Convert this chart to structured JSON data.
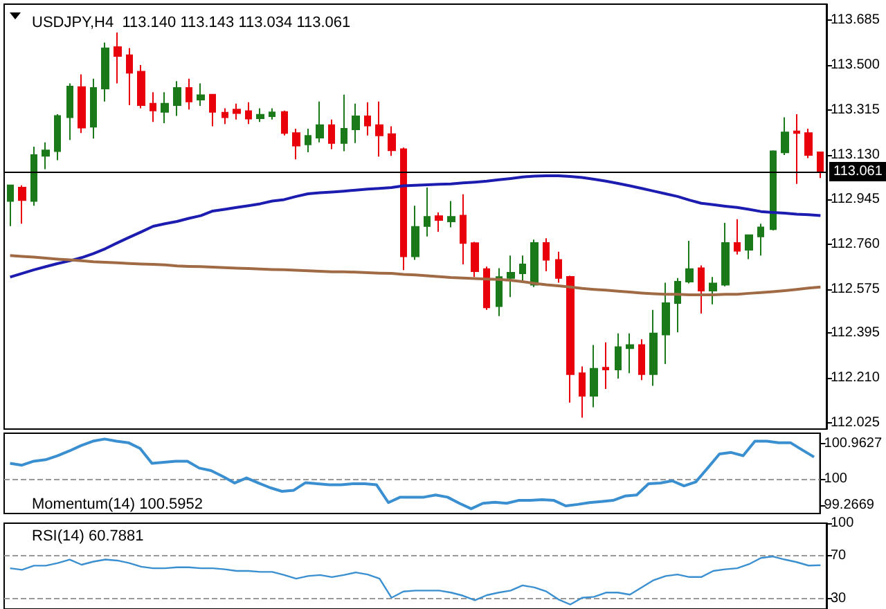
{
  "chart_data": [
    {
      "type": "candlestick",
      "title": "USDJPY,H4  113.140 113.143 113.034 113.061",
      "marker": "none",
      "categories": [
        null,
        null,
        null,
        null,
        null,
        null,
        null,
        null,
        null,
        null,
        null,
        null,
        null,
        null,
        null,
        null,
        null,
        null,
        null,
        null,
        null,
        null,
        null,
        null,
        null,
        null,
        null,
        null,
        null,
        null,
        null,
        null,
        null,
        null,
        null,
        null,
        null,
        null,
        null,
        null,
        null,
        null,
        null,
        null,
        null,
        null,
        null,
        null,
        null,
        null,
        null,
        null,
        null,
        null,
        null,
        null,
        null,
        null,
        null,
        null,
        null,
        null,
        null,
        null,
        null,
        null,
        null,
        null,
        null
      ],
      "ohlc": [
        [
          112.939,
          113.004,
          112.836,
          113.004
        ],
        [
          112.995,
          113.004,
          112.846,
          112.943
        ],
        [
          112.939,
          113.163,
          112.92,
          113.129
        ],
        [
          113.125,
          113.181,
          113.07,
          113.148
        ],
        [
          113.144,
          113.297,
          113.107,
          113.29
        ],
        [
          113.284,
          113.424,
          113.191,
          113.411
        ],
        [
          113.409,
          113.461,
          113.219,
          113.241
        ],
        [
          113.245,
          113.443,
          113.196,
          113.405
        ],
        [
          113.402,
          113.592,
          113.349,
          113.568
        ],
        [
          113.573,
          113.633,
          113.424,
          113.536
        ],
        [
          113.54,
          113.569,
          113.334,
          113.467
        ],
        [
          113.472,
          113.499,
          113.321,
          113.334
        ],
        [
          113.34,
          113.387,
          113.265,
          113.312
        ],
        [
          113.306,
          113.387,
          113.26,
          113.34
        ],
        [
          113.334,
          113.433,
          113.29,
          113.405
        ],
        [
          113.405,
          113.443,
          113.316,
          113.349
        ],
        [
          113.357,
          113.424,
          113.331,
          113.375
        ],
        [
          113.377,
          113.377,
          113.247,
          113.306
        ],
        [
          113.303,
          113.321,
          113.256,
          113.284
        ],
        [
          113.316,
          113.34,
          113.275,
          113.301
        ],
        [
          113.31,
          113.346,
          113.256,
          113.278
        ],
        [
          113.28,
          113.321,
          113.265,
          113.295
        ],
        [
          113.288,
          113.321,
          113.275,
          113.305
        ],
        [
          113.306,
          113.312,
          113.209,
          113.219
        ],
        [
          113.219,
          113.237,
          113.111,
          113.167
        ],
        [
          113.172,
          113.237,
          113.14,
          113.208
        ],
        [
          113.2,
          113.349,
          113.181,
          113.252
        ],
        [
          113.252,
          113.275,
          113.153,
          113.178
        ],
        [
          113.178,
          113.377,
          113.144,
          113.237
        ],
        [
          113.234,
          113.34,
          113.178,
          113.288
        ],
        [
          113.288,
          113.346,
          113.209,
          113.25
        ],
        [
          113.252,
          113.349,
          113.122,
          113.209
        ],
        [
          113.215,
          113.247,
          113.125,
          113.148
        ],
        [
          113.153,
          113.159,
          112.655,
          112.711
        ],
        [
          112.711,
          112.92,
          112.697,
          112.833
        ],
        [
          112.836,
          112.995,
          112.793,
          112.874
        ],
        [
          112.877,
          112.892,
          112.812,
          112.861
        ],
        [
          112.855,
          112.939,
          112.831,
          112.874
        ],
        [
          112.879,
          112.967,
          112.678,
          112.766
        ],
        [
          112.766,
          112.771,
          112.626,
          112.65
        ],
        [
          112.659,
          112.669,
          112.491,
          112.501
        ],
        [
          112.506,
          112.663,
          112.465,
          112.626
        ],
        [
          112.622,
          112.715,
          112.544,
          112.644
        ],
        [
          112.641,
          112.715,
          112.603,
          112.678
        ],
        [
          112.594,
          112.78,
          112.585,
          112.767
        ],
        [
          112.767,
          112.786,
          112.65,
          112.697
        ],
        [
          112.697,
          112.73,
          112.603,
          112.622
        ],
        [
          112.627,
          112.631,
          112.109,
          112.226
        ],
        [
          112.23,
          112.258,
          112.047,
          112.137
        ],
        [
          112.137,
          112.346,
          112.09,
          112.249
        ],
        [
          112.253,
          112.357,
          112.165,
          112.245
        ],
        [
          112.245,
          112.394,
          112.208,
          112.338
        ],
        [
          112.333,
          112.394,
          112.23,
          112.346
        ],
        [
          112.346,
          112.37,
          112.202,
          112.226
        ],
        [
          112.226,
          112.491,
          112.178,
          112.394
        ],
        [
          112.389,
          112.603,
          112.268,
          112.519
        ],
        [
          112.519,
          112.622,
          112.398,
          112.607
        ],
        [
          112.607,
          112.775,
          112.6,
          112.659
        ],
        [
          112.663,
          112.674,
          112.476,
          112.57
        ],
        [
          112.57,
          112.626,
          112.514,
          112.6
        ],
        [
          112.594,
          112.849,
          112.588,
          112.767
        ],
        [
          112.767,
          112.864,
          112.719,
          112.734
        ],
        [
          112.738,
          112.799,
          112.7,
          112.799
        ],
        [
          112.793,
          112.846,
          112.715,
          112.831
        ],
        [
          112.823,
          113.148,
          112.818,
          113.144
        ],
        [
          113.139,
          113.284,
          113.129,
          113.222
        ],
        [
          113.226,
          113.297,
          113.01,
          113.219
        ],
        [
          113.219,
          113.237,
          113.116,
          113.129
        ],
        [
          113.14,
          113.143,
          113.034,
          113.061
        ]
      ],
      "colors": [
        "#1a7a1a",
        "#e8000b",
        "#1a7a1a",
        "#1a7a1a",
        "#1a7a1a",
        "#1a7a1a",
        "#e8000b",
        "#1a7a1a",
        "#1a7a1a",
        "#e8000b",
        "#e8000b",
        "#e8000b",
        "#e8000b",
        "#1a7a1a",
        "#1a7a1a",
        "#e8000b",
        "#1a7a1a",
        "#e8000b",
        "#e8000b",
        "#e8000b",
        "#e8000b",
        "#1a7a1a",
        "#1a7a1a",
        "#e8000b",
        "#e8000b",
        "#1a7a1a",
        "#1a7a1a",
        "#e8000b",
        "#1a7a1a",
        "#1a7a1a",
        "#e8000b",
        "#e8000b",
        "#e8000b",
        "#e8000b",
        "#1a7a1a",
        "#1a7a1a",
        "#e8000b",
        "#1a7a1a",
        "#e8000b",
        "#e8000b",
        "#e8000b",
        "#1a7a1a",
        "#1a7a1a",
        "#1a7a1a",
        "#1a7a1a",
        "#e8000b",
        "#e8000b",
        "#e8000b",
        "#e8000b",
        "#1a7a1a",
        "#e8000b",
        "#1a7a1a",
        "#1a7a1a",
        "#e8000b",
        "#1a7a1a",
        "#1a7a1a",
        "#1a7a1a",
        "#1a7a1a",
        "#e8000b",
        "#1a7a1a",
        "#1a7a1a",
        "#e8000b",
        "#1a7a1a",
        "#1a7a1a",
        "#1a7a1a",
        "#1a7a1a",
        "#e8000b",
        "#e8000b",
        "#e8000b"
      ],
      "series": [
        {
          "type": "line",
          "color": "#1c1cb0",
          "values": [
            112.626,
            112.641,
            112.656,
            112.669,
            112.682,
            112.693,
            112.706,
            112.723,
            112.743,
            112.767,
            112.79,
            112.812,
            112.835,
            112.846,
            112.855,
            112.868,
            112.879,
            112.898,
            112.905,
            112.913,
            112.92,
            112.928,
            112.939,
            112.945,
            112.958,
            112.969,
            112.973,
            112.976,
            112.98,
            112.984,
            112.988,
            112.991,
            112.995,
            113.002,
            113.004,
            113.006,
            113.008,
            113.01,
            113.014,
            113.017,
            113.021,
            113.027,
            113.032,
            113.038,
            113.042,
            113.043,
            113.043,
            113.04,
            113.036,
            113.029,
            113.021,
            113.012,
            113.002,
            112.991,
            112.98,
            112.969,
            112.958,
            112.943,
            112.93,
            112.924,
            112.918,
            112.913,
            112.905,
            112.896,
            112.892,
            112.889,
            112.885,
            112.883,
            112.879
          ]
        },
        {
          "type": "line",
          "color": "#a06a45",
          "values": [
            112.715,
            112.711,
            112.708,
            112.704,
            112.7,
            112.697,
            112.693,
            112.689,
            112.687,
            112.685,
            112.682,
            112.68,
            112.678,
            112.676,
            112.672,
            112.67,
            112.669,
            112.667,
            112.665,
            112.663,
            112.661,
            112.659,
            112.657,
            112.656,
            112.654,
            112.652,
            112.65,
            112.648,
            112.648,
            112.646,
            112.644,
            112.642,
            112.641,
            112.637,
            112.635,
            112.631,
            112.628,
            112.624,
            112.622,
            112.62,
            112.618,
            112.616,
            112.613,
            112.607,
            112.6,
            112.594,
            112.59,
            112.585,
            112.579,
            112.575,
            112.572,
            112.568,
            112.564,
            112.56,
            112.557,
            112.555,
            112.555,
            112.553,
            112.553,
            112.553,
            112.555,
            112.555,
            112.559,
            112.562,
            112.566,
            112.57,
            112.575,
            112.581,
            112.585
          ]
        }
      ],
      "ylim": [
        112.0,
        113.75
      ],
      "yticks": [
        113.685,
        {
          "value": 113.5,
          "label": "113.500"
        },
        113.315,
        {
          "value": 113.13,
          "label": "113.130"
        },
        112.945,
        {
          "value": 112.76,
          "label": "112.760"
        },
        112.575,
        112.395,
        {
          "value": 112.21,
          "label": "112.210"
        },
        112.025
      ],
      "ref_lines": [
        {
          "axis": "y",
          "value": 113.061,
          "label": "113.061",
          "color": "#000000",
          "line_style": "solid"
        }
      ]
    },
    {
      "type": "line",
      "title": "Momentum(14) 100.5952",
      "marker": "none",
      "color": "#3a8fd0",
      "categories": [
        null,
        null,
        null,
        null,
        null,
        null,
        null,
        null,
        null,
        null,
        null,
        null,
        null,
        null,
        null,
        null,
        null,
        null,
        null,
        null,
        null,
        null,
        null,
        null,
        null,
        null,
        null,
        null,
        null,
        null,
        null,
        null,
        null,
        null,
        null,
        null,
        null,
        null,
        null,
        null,
        null,
        null,
        null,
        null,
        null,
        null,
        null,
        null,
        null,
        null,
        null,
        null,
        null,
        null,
        null,
        null,
        null,
        null,
        null,
        null,
        null,
        null,
        null,
        null,
        null,
        null,
        null,
        null,
        null
      ],
      "values": [
        100.42,
        100.37,
        100.48,
        100.52,
        100.63,
        100.76,
        100.91,
        101.03,
        101.09,
        101.03,
        100.99,
        100.83,
        100.42,
        100.45,
        100.48,
        100.48,
        100.29,
        100.22,
        100.06,
        99.88,
        100.02,
        99.88,
        99.75,
        99.65,
        99.68,
        99.89,
        99.86,
        99.83,
        99.83,
        99.86,
        99.86,
        99.83,
        99.34,
        99.49,
        99.49,
        99.49,
        99.55,
        99.49,
        99.32,
        99.17,
        99.32,
        99.35,
        99.32,
        99.4,
        99.4,
        99.42,
        99.4,
        99.25,
        99.29,
        99.34,
        99.37,
        99.4,
        99.52,
        99.55,
        99.86,
        99.88,
        99.94,
        99.8,
        99.91,
        100.29,
        100.68,
        100.72,
        100.63,
        101.03,
        101.03,
        100.99,
        100.99,
        100.79,
        100.5952
      ],
      "ylim": [
        99.04,
        101.25
      ],
      "yticks": [
        100.9627,
        100,
        99.2669
      ],
      "ref_lines": [
        {
          "axis": "y",
          "value": 100,
          "color": "#999999",
          "line_style": "dashed"
        }
      ]
    },
    {
      "type": "line",
      "title": "RSI(14) 60.7881",
      "marker": "none",
      "color": "#3a8fd0",
      "categories": [
        null,
        null,
        null,
        null,
        null,
        null,
        null,
        null,
        null,
        null,
        null,
        null,
        null,
        null,
        null,
        null,
        null,
        null,
        null,
        null,
        null,
        null,
        null,
        null,
        null,
        null,
        null,
        null,
        null,
        null,
        null,
        null,
        null,
        null,
        null,
        null,
        null,
        null,
        null,
        null,
        null,
        null,
        null,
        null,
        null,
        null,
        null,
        null,
        null,
        null,
        null,
        null,
        null,
        null,
        null,
        null,
        null,
        null,
        null,
        null,
        null,
        null,
        null,
        null,
        null,
        null,
        null,
        null,
        null
      ],
      "values": [
        58,
        56.5,
        60.4,
        60.4,
        62.8,
        66.1,
        61.3,
        64.2,
        66.1,
        65.2,
        62.8,
        59.4,
        58,
        58,
        58.9,
        58.9,
        58,
        58,
        57,
        55.5,
        55.5,
        54.6,
        54.6,
        51.7,
        48.3,
        50.7,
        51.7,
        49.8,
        51.7,
        54.1,
        52.2,
        48.3,
        30.5,
        36.3,
        37.2,
        37.2,
        37.2,
        35.3,
        32.4,
        28.1,
        32.9,
        35.3,
        37.2,
        42,
        40.1,
        36.3,
        29,
        24.2,
        30.5,
        31.4,
        35.3,
        35.3,
        33.4,
        40.1,
        46.9,
        50.7,
        52.2,
        49.8,
        49.8,
        55.5,
        57,
        58,
        61.8,
        67.6,
        69,
        66.1,
        63.7,
        60.5,
        60.7881
      ],
      "ylim": [
        20,
        100
      ],
      "yticks": [
        100,
        70,
        30
      ],
      "ref_lines": [
        {
          "axis": "y",
          "value": 70,
          "color": "#999999",
          "line_style": "dashed"
        },
        {
          "axis": "y",
          "value": 30,
          "color": "#999999",
          "line_style": "dashed"
        }
      ]
    }
  ]
}
